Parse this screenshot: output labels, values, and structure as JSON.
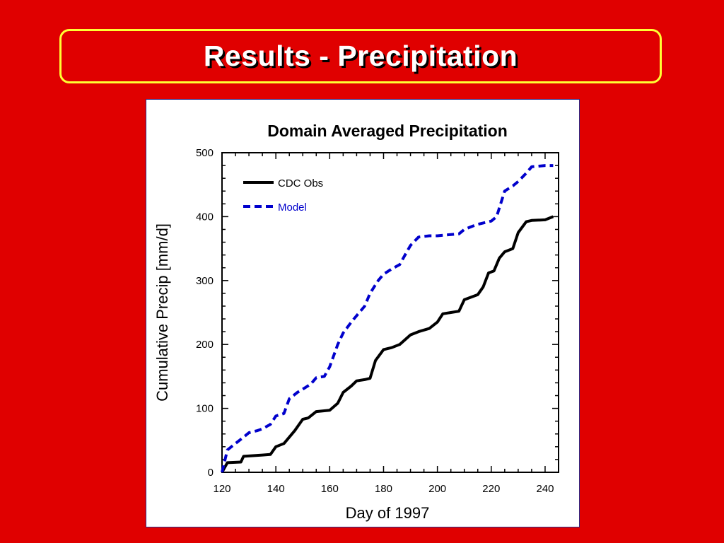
{
  "slide": {
    "title": "Results - Precipitation"
  },
  "colors": {
    "background": "#e00000",
    "title_border": "#ffff33",
    "obs_line": "#000000",
    "model_line": "#0000cc"
  },
  "chart_data": {
    "type": "line",
    "title": "Domain Averaged Precipitation",
    "xlabel": "Day of 1997",
    "ylabel": "Cumulative Precip [mm/d]",
    "xlim": [
      120,
      245
    ],
    "ylim": [
      0,
      500
    ],
    "x_ticks": [
      120,
      140,
      160,
      180,
      200,
      220,
      240
    ],
    "y_ticks": [
      0,
      100,
      200,
      300,
      400,
      500
    ],
    "grid": false,
    "legend": "top-left",
    "series": [
      {
        "name": "CDC Obs",
        "style": "solid",
        "color": "#000000",
        "x": [
          120,
          122,
          127,
          128,
          135,
          138,
          140,
          143,
          147,
          150,
          152,
          155,
          160,
          163,
          165,
          168,
          170,
          173,
          175,
          177,
          180,
          183,
          186,
          190,
          193,
          197,
          200,
          202,
          205,
          208,
          210,
          215,
          217,
          219,
          221,
          223,
          225,
          228,
          230,
          233,
          235,
          240,
          243
        ],
        "y": [
          0,
          15,
          16,
          25,
          27,
          28,
          40,
          45,
          65,
          83,
          85,
          95,
          97,
          108,
          125,
          135,
          143,
          145,
          147,
          175,
          192,
          195,
          200,
          215,
          220,
          225,
          235,
          248,
          250,
          252,
          270,
          278,
          290,
          312,
          315,
          335,
          345,
          350,
          375,
          392,
          394,
          395,
          400
        ]
      },
      {
        "name": "Model",
        "style": "dashed",
        "color": "#0000cc",
        "x": [
          120,
          122,
          125,
          128,
          130,
          133,
          135,
          138,
          140,
          143,
          145,
          148,
          150,
          153,
          155,
          158,
          160,
          163,
          165,
          168,
          170,
          173,
          175,
          178,
          180,
          183,
          186,
          188,
          190,
          193,
          197,
          200,
          205,
          208,
          210,
          213,
          215,
          217,
          220,
          222,
          225,
          228,
          230,
          233,
          235,
          240,
          243
        ],
        "y": [
          0,
          35,
          45,
          55,
          62,
          65,
          68,
          75,
          88,
          92,
          115,
          125,
          130,
          138,
          148,
          150,
          165,
          200,
          218,
          235,
          245,
          260,
          280,
          300,
          310,
          318,
          325,
          340,
          355,
          368,
          370,
          370,
          372,
          373,
          380,
          385,
          388,
          390,
          393,
          400,
          440,
          448,
          455,
          468,
          478,
          480,
          480
        ]
      }
    ]
  }
}
